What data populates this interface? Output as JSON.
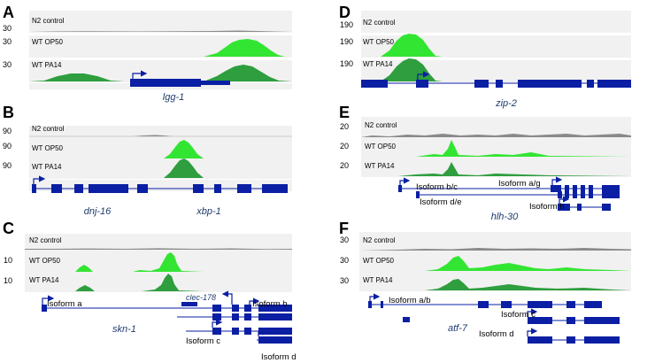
{
  "panels": [
    {
      "letter": "A",
      "tracks": [
        {
          "label": "N2 control",
          "scale": "30"
        },
        {
          "label": "WT OP50",
          "scale": "30"
        },
        {
          "label": "WT PA14",
          "scale": "30"
        }
      ],
      "genes": [
        {
          "name": "lgg-1"
        }
      ],
      "isoforms": []
    },
    {
      "letter": "B",
      "tracks": [
        {
          "label": "N2 control",
          "scale": ""
        },
        {
          "label": "WT OP50",
          "scale": "90"
        },
        {
          "label": "WT PA14",
          "scale": "90"
        }
      ],
      "extra_scale": "90",
      "genes": [
        {
          "name": "dnj-16"
        },
        {
          "name": "xbp-1"
        }
      ],
      "isoforms": []
    },
    {
      "letter": "C",
      "tracks": [
        {
          "label": "N2 control",
          "scale": ""
        },
        {
          "label": "WT OP50",
          "scale": "10"
        },
        {
          "label": "WT PA14",
          "scale": "10"
        }
      ],
      "extra_scale": "10",
      "genes": [
        {
          "name": "skn-1"
        },
        {
          "name": "clec-178"
        }
      ],
      "isoforms": [
        "Isoform a",
        "Isoform b",
        "Isoform c",
        "Isoform d"
      ]
    },
    {
      "letter": "D",
      "tracks": [
        {
          "label": "N2 control",
          "scale": "190"
        },
        {
          "label": "WT OP50",
          "scale": "190"
        },
        {
          "label": "WT PA14",
          "scale": "190"
        }
      ],
      "genes": [
        {
          "name": "zip-2"
        }
      ],
      "isoforms": []
    },
    {
      "letter": "E",
      "tracks": [
        {
          "label": "N2 control",
          "scale": "20"
        },
        {
          "label": "WT OP50",
          "scale": "20"
        },
        {
          "label": "WT PA14",
          "scale": "20"
        }
      ],
      "genes": [
        {
          "name": "hlh-30"
        }
      ],
      "isoforms": [
        "Isoform b/c",
        "Isoform a/g",
        "Isoform d/e",
        "Isoform h"
      ]
    },
    {
      "letter": "F",
      "tracks": [
        {
          "label": "N2 control",
          "scale": "30"
        },
        {
          "label": "WT OP50",
          "scale": "30"
        },
        {
          "label": "WT PA14",
          "scale": "30"
        }
      ],
      "genes": [
        {
          "name": "atf-7"
        }
      ],
      "isoforms": [
        "Isoform a/b",
        "Isoform c",
        "Isoform d"
      ]
    }
  ],
  "colors": {
    "control": "#8a8a8a",
    "op50": "#33e533",
    "pa14": "#2e9e3e",
    "gene": "#0a1fa3",
    "gene_label": "#1f3a6e",
    "track_bg": "#f1f1f1"
  }
}
